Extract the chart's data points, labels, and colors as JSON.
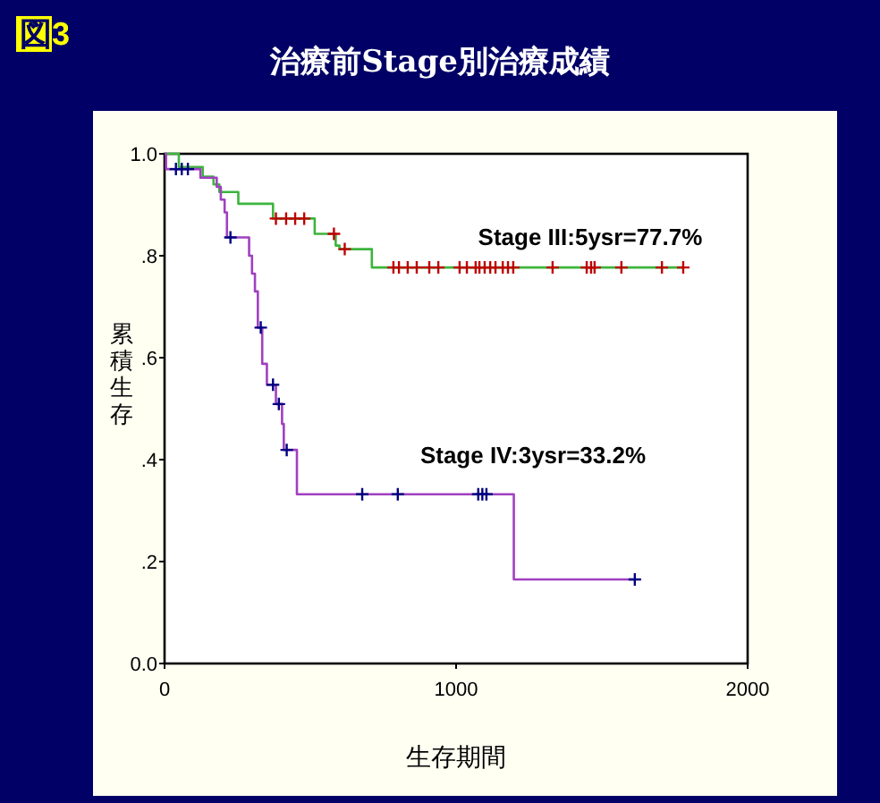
{
  "chart_data": {
    "type": "step",
    "title": "治療前Stage別治療成績",
    "xlabel": "生存期間",
    "ylabel": "累積生存",
    "annotations": [
      "図3",
      "Stage III:5ysr=77.7%",
      "Stage IV:3ysr=33.2%"
    ],
    "xlim": [
      0,
      2000
    ],
    "xticks": [
      0,
      1000,
      2000
    ],
    "ylim": [
      0,
      1
    ],
    "yticks": [
      {
        "value": 0,
        "label": "0.0"
      },
      {
        "value": 0.2,
        "label": ".2"
      },
      {
        "value": 0.4,
        "label": ".4"
      },
      {
        "value": 0.6,
        "label": ".6"
      },
      {
        "value": 0.8,
        "label": ".8"
      },
      {
        "value": 1,
        "label": "1.0"
      }
    ],
    "grid": false,
    "series": [
      {
        "color": "#3cb43c",
        "x": [
          0,
          49,
          131,
          168,
          188,
          253,
          372,
          515,
          587,
          600,
          711,
          1779
        ],
        "values": [
          1,
          0.974,
          0.955,
          0.94,
          0.925,
          0.902,
          0.873,
          0.843,
          0.82,
          0.813,
          0.777,
          0.777
        ]
      },
      {
        "type": "scatter",
        "marker": "cross",
        "color": "#c00000",
        "x": [
          382,
          417,
          448,
          479,
          581,
          618,
          785,
          804,
          834,
          865,
          908,
          939,
          1012,
          1037,
          1067,
          1080,
          1098,
          1117,
          1135,
          1160,
          1178,
          1196,
          1331,
          1448,
          1463,
          1475,
          1567,
          1706,
          1779
        ],
        "values": [
          0.873,
          0.873,
          0.873,
          0.873,
          0.843,
          0.813,
          0.777,
          0.777,
          0.777,
          0.777,
          0.777,
          0.777,
          0.777,
          0.777,
          0.777,
          0.777,
          0.777,
          0.777,
          0.777,
          0.777,
          0.777,
          0.777,
          0.777,
          0.777,
          0.777,
          0.777,
          0.777,
          0.777,
          0.777
        ]
      },
      {
        "color": "#a040c0",
        "x": [
          0,
          5,
          123,
          179,
          193,
          206,
          214,
          290,
          300,
          310,
          320,
          335,
          351,
          382,
          403,
          409,
          454,
          1198,
          1613
        ],
        "values": [
          1,
          0.97,
          0.953,
          0.935,
          0.91,
          0.885,
          0.836,
          0.8,
          0.765,
          0.73,
          0.659,
          0.588,
          0.547,
          0.509,
          0.47,
          0.419,
          0.332,
          0.165,
          0.165
        ]
      },
      {
        "type": "scatter",
        "marker": "cross",
        "color": "#000080",
        "x": [
          39,
          59,
          80,
          226,
          330,
          372,
          392,
          419,
          678,
          800,
          1076,
          1090,
          1104,
          1613
        ],
        "values": [
          0.97,
          0.97,
          0.97,
          0.836,
          0.659,
          0.547,
          0.509,
          0.419,
          0.332,
          0.332,
          0.332,
          0.332,
          0.332,
          0.165
        ]
      }
    ]
  }
}
